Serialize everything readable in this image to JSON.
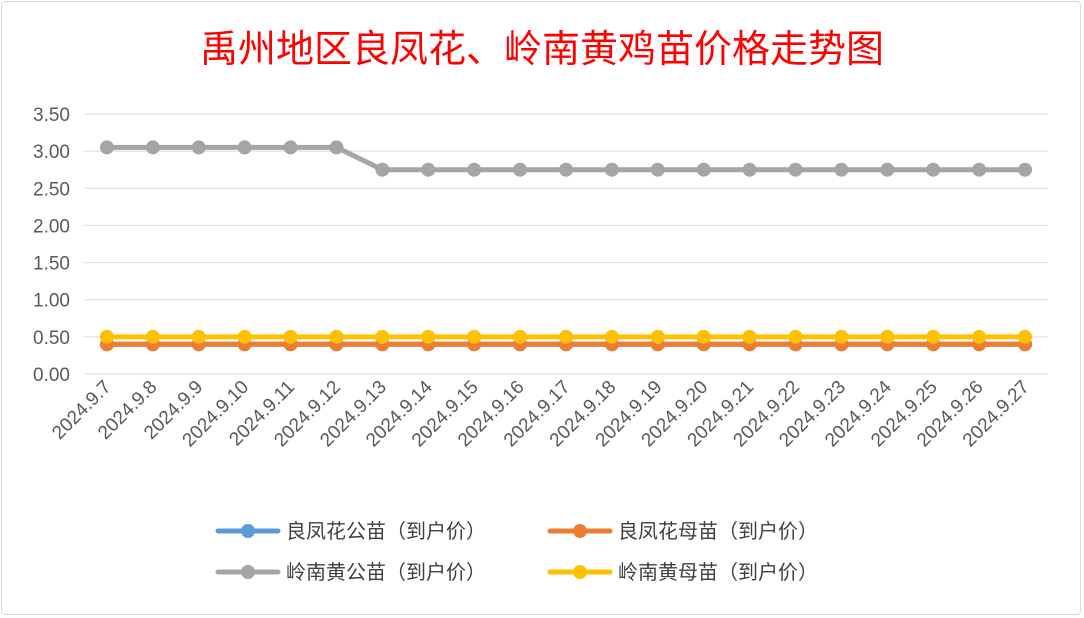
{
  "chart_data": {
    "type": "line",
    "title": "禹州地区良凤花、岭南黄鸡苗价格走势图",
    "xlabel": "",
    "ylabel": "",
    "ylim": [
      0,
      3.5
    ],
    "ytick_step": 0.5,
    "ytick_labels": [
      "0.00",
      "0.50",
      "1.00",
      "1.50",
      "2.00",
      "2.50",
      "3.00",
      "3.50"
    ],
    "grid": "horizontal",
    "legend_position": "bottom",
    "categories": [
      "2024.9.7",
      "2024.9.8",
      "2024.9.9",
      "2024.9.10",
      "2024.9.11",
      "2024.9.12",
      "2024.9.13",
      "2024.9.14",
      "2024.9.15",
      "2024.9.16",
      "2024.9.17",
      "2024.9.18",
      "2024.9.19",
      "2024.9.20",
      "2024.9.21",
      "2024.9.22",
      "2024.9.23",
      "2024.9.24",
      "2024.9.25",
      "2024.9.26",
      "2024.9.27"
    ],
    "series": [
      {
        "name": "良凤花公苗（到户价）",
        "color": "#5b9bd5",
        "values": [
          0.4,
          0.4,
          0.4,
          0.4,
          0.4,
          0.4,
          0.4,
          0.4,
          0.4,
          0.4,
          0.4,
          0.4,
          0.4,
          0.4,
          0.4,
          0.4,
          0.4,
          0.4,
          0.4,
          0.4,
          0.4
        ]
      },
      {
        "name": "良凤花母苗（到户价）",
        "color": "#ed7d31",
        "values": [
          0.4,
          0.4,
          0.4,
          0.4,
          0.4,
          0.4,
          0.4,
          0.4,
          0.4,
          0.4,
          0.4,
          0.4,
          0.4,
          0.4,
          0.4,
          0.4,
          0.4,
          0.4,
          0.4,
          0.4,
          0.4
        ]
      },
      {
        "name": "岭南黄公苗（到户价）",
        "color": "#a5a5a5",
        "values": [
          3.05,
          3.05,
          3.05,
          3.05,
          3.05,
          3.05,
          2.75,
          2.75,
          2.75,
          2.75,
          2.75,
          2.75,
          2.75,
          2.75,
          2.75,
          2.75,
          2.75,
          2.75,
          2.75,
          2.75,
          2.75
        ]
      },
      {
        "name": "岭南黄母苗（到户价）",
        "color": "#ffc000",
        "values": [
          0.5,
          0.5,
          0.5,
          0.5,
          0.5,
          0.5,
          0.5,
          0.5,
          0.5,
          0.5,
          0.5,
          0.5,
          0.5,
          0.5,
          0.5,
          0.5,
          0.5,
          0.5,
          0.5,
          0.5,
          0.5
        ]
      }
    ]
  }
}
